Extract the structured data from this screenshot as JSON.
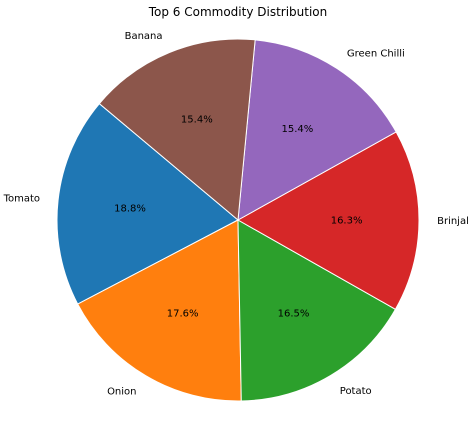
{
  "chart_data": {
    "type": "pie",
    "title": "Top 6 Commodity Distribution",
    "slices": [
      {
        "label": "Tomato",
        "value": 18.8,
        "pct_label": "18.8%",
        "color": "#1f77b4"
      },
      {
        "label": "Onion",
        "value": 17.6,
        "pct_label": "17.6%",
        "color": "#ff7f0e"
      },
      {
        "label": "Potato",
        "value": 16.5,
        "pct_label": "16.5%",
        "color": "#2ca02c"
      },
      {
        "label": "Brinjal",
        "value": 16.3,
        "pct_label": "16.3%",
        "color": "#d62728"
      },
      {
        "label": "Green Chilli",
        "value": 15.4,
        "pct_label": "15.4%",
        "color": "#9467bd"
      },
      {
        "label": "Banana",
        "value": 15.4,
        "pct_label": "15.4%",
        "color": "#8c564b"
      }
    ],
    "start_angle_deg": 140,
    "direction": "counterclockwise",
    "legend": "none"
  }
}
